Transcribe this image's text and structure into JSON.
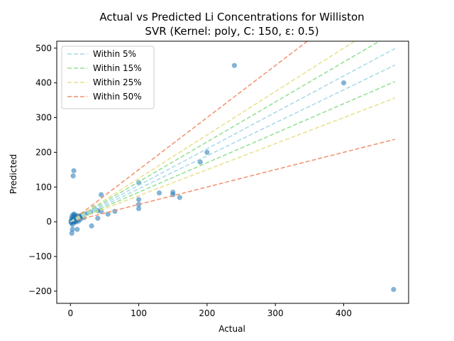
{
  "chart_data": {
    "type": "scatter",
    "title": "Actual vs Predicted Li Concentrations for Williston",
    "subtitle": "SVR (Kernel: poly, C: 150, ε: 0.5)",
    "xlabel": "Actual",
    "ylabel": "Predicted",
    "xlim": [
      -20,
      495
    ],
    "ylim": [
      -235,
      520
    ],
    "xticks": [
      0,
      100,
      200,
      300,
      400
    ],
    "yticks": [
      -200,
      -100,
      0,
      100,
      200,
      300,
      400,
      500
    ],
    "xtick_labels": [
      "0",
      "100",
      "200",
      "300",
      "400"
    ],
    "ytick_labels": [
      "−200",
      "−100",
      "0",
      "100",
      "200",
      "300",
      "400",
      "500"
    ],
    "grid": false,
    "legend_position": "top-left",
    "point_color": "#1f77b4",
    "bands": [
      {
        "name": "Within 5%",
        "factor": 0.05,
        "color": "#a6d8e8"
      },
      {
        "name": "Within 15%",
        "factor": 0.15,
        "color": "#90e090"
      },
      {
        "name": "Within 25%",
        "factor": 0.25,
        "color": "#e8e08c"
      },
      {
        "name": "Within 50%",
        "factor": 0.5,
        "color": "#f0906c"
      }
    ],
    "band_x_range": [
      0,
      475
    ],
    "points": [
      {
        "x": 1,
        "y": 2
      },
      {
        "x": 2,
        "y": -3
      },
      {
        "x": 3,
        "y": 5
      },
      {
        "x": 4,
        "y": 10
      },
      {
        "x": 5,
        "y": 15
      },
      {
        "x": 6,
        "y": 20
      },
      {
        "x": 2,
        "y": 12
      },
      {
        "x": 3,
        "y": -8
      },
      {
        "x": 1,
        "y": -2
      },
      {
        "x": 5,
        "y": 0
      },
      {
        "x": 7,
        "y": 3
      },
      {
        "x": 8,
        "y": 8
      },
      {
        "x": 10,
        "y": 12
      },
      {
        "x": 12,
        "y": 15
      },
      {
        "x": 15,
        "y": 18
      },
      {
        "x": 18,
        "y": 20
      },
      {
        "x": 20,
        "y": 22
      },
      {
        "x": 20,
        "y": 12
      },
      {
        "x": 15,
        "y": 8
      },
      {
        "x": 10,
        "y": 5
      },
      {
        "x": 12,
        "y": 2
      },
      {
        "x": 8,
        "y": -1
      },
      {
        "x": 6,
        "y": 0
      },
      {
        "x": 4,
        "y": 3
      },
      {
        "x": 2,
        "y": 6
      },
      {
        "x": 3,
        "y": 18
      },
      {
        "x": 5,
        "y": 22
      },
      {
        "x": 9,
        "y": 18
      },
      {
        "x": 14,
        "y": 12
      },
      {
        "x": 16,
        "y": 16
      },
      {
        "x": 11,
        "y": 10
      },
      {
        "x": 7,
        "y": 14
      },
      {
        "x": 2,
        "y": -33
      },
      {
        "x": 3,
        "y": -22
      },
      {
        "x": 10,
        "y": -22
      },
      {
        "x": 4,
        "y": 132
      },
      {
        "x": 5,
        "y": 147
      },
      {
        "x": 25,
        "y": 25
      },
      {
        "x": 30,
        "y": 28
      },
      {
        "x": 35,
        "y": 40
      },
      {
        "x": 40,
        "y": 32
      },
      {
        "x": 31,
        "y": -12
      },
      {
        "x": 40,
        "y": 10
      },
      {
        "x": 45,
        "y": 30
      },
      {
        "x": 45,
        "y": 78
      },
      {
        "x": 55,
        "y": 22
      },
      {
        "x": 65,
        "y": 30
      },
      {
        "x": 100,
        "y": 113
      },
      {
        "x": 100,
        "y": 64
      },
      {
        "x": 100,
        "y": 50
      },
      {
        "x": 100,
        "y": 38
      },
      {
        "x": 130,
        "y": 83
      },
      {
        "x": 150,
        "y": 85
      },
      {
        "x": 150,
        "y": 78
      },
      {
        "x": 160,
        "y": 70
      },
      {
        "x": 190,
        "y": 172
      },
      {
        "x": 200,
        "y": 200
      },
      {
        "x": 240,
        "y": 450
      },
      {
        "x": 400,
        "y": 400
      },
      {
        "x": 473,
        "y": -195
      }
    ]
  }
}
